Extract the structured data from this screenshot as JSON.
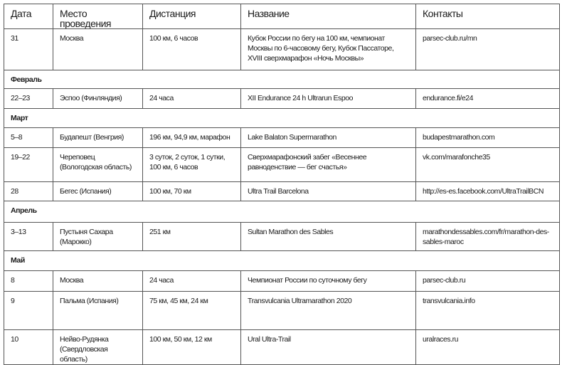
{
  "headers": [
    "Дата",
    "Место проведения",
    "Дистанция",
    "Название",
    "Контакты"
  ],
  "rows": [
    {
      "type": "event",
      "date": "31",
      "place": "Москва",
      "distance": "100 км, 6 часов",
      "name": "Кубок России по бегу на 100 км, чемпионат Москвы по 6-часовому бегу, Кубок Пассаторе, XVIII сверхмарафон «Ночь Москвы»",
      "contact": "parsec-club.ru/mn"
    },
    {
      "type": "month",
      "label": "Февраль"
    },
    {
      "type": "event",
      "date": "22–23",
      "place": "Эспоо (Финляндия)",
      "distance": "24 часа",
      "name": "XII Endurance 24 h Ultrarun Espoo",
      "contact": "endurance.fi/e24"
    },
    {
      "type": "month",
      "label": "Март"
    },
    {
      "type": "event",
      "date": "5–8",
      "place": "Будапешт (Венгрия)",
      "distance": "196 км, 94,9 км, марафон",
      "name": "Lake Balaton Supermarathon",
      "contact": "budapestmarathon.com"
    },
    {
      "type": "event",
      "date": "19–22",
      "place": "Череповец (Вологодская область)",
      "distance": "3 суток, 2 суток, 1 сутки, 100 км, 6 часов",
      "name": "Сверхмарафонский забег «Весеннее равноденствие — бег счастья»",
      "contact": "vk.com/marafonche35"
    },
    {
      "type": "event",
      "date": "28",
      "place": "Бегес (Испания)",
      "distance": "100 км, 70 км",
      "name": "Ultra Trail Barcelona",
      "contact": "http://es-es.facebook.com/UltraTrailBCN"
    },
    {
      "type": "month",
      "label": "Апрель"
    },
    {
      "type": "event",
      "date": "3–13",
      "place": "Пустыня Сахара (Марокко)",
      "distance": "251 км",
      "name": "Sultan Marathon des Sables",
      "contact": "marathondessables.com/fr/marathon-des-sables-maroc"
    },
    {
      "type": "month",
      "label": "Май"
    },
    {
      "type": "event",
      "date": "8",
      "place": "Москва",
      "distance": "24 часа",
      "name": "Чемпионат России по суточному бегу",
      "contact": "parsec-club.ru"
    },
    {
      "type": "event",
      "date": "9",
      "place": "Пальма (Испания)",
      "distance": "75 км, 45 км, 24 км",
      "name": "Transvulcania Ultramarathon 2020",
      "contact": "transvulcania.info"
    },
    {
      "type": "event",
      "date": "10",
      "place": "Нейво-Рудянка (Свердловская область)",
      "distance": "100 км, 50 км, 12 км",
      "name": "Ural Ultra-Trail",
      "contact": "uralraces.ru"
    }
  ]
}
